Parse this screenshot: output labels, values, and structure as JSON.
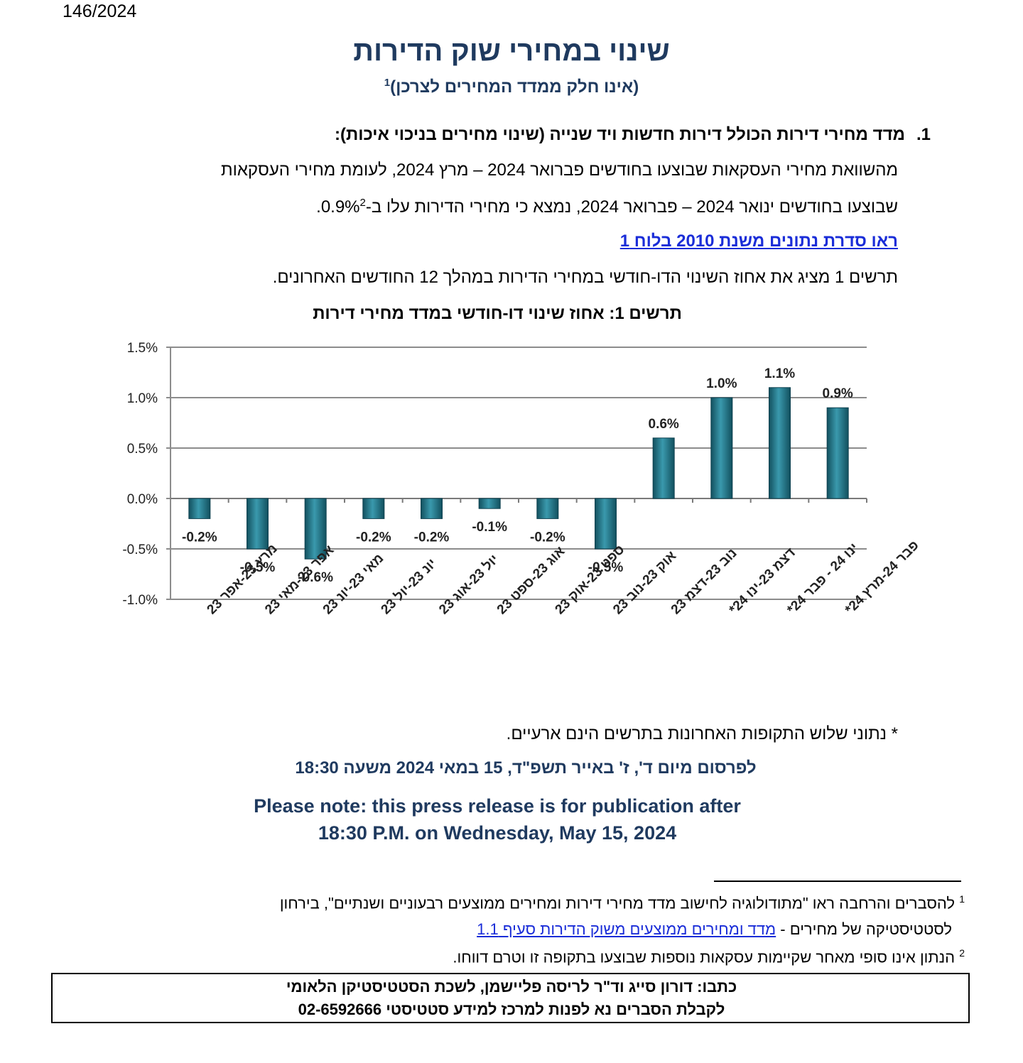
{
  "doc_number": "146/2024",
  "title": "שינוי במחירי שוק הדירות",
  "subtitle": "(אינו חלק ממדד המחירים לצרכן)",
  "subtitle_footnote": "1",
  "section1": {
    "number": "1.",
    "heading": "מדד מחירי דירות הכולל דירות חדשות ויד שנייה (שינוי מחירים בניכוי איכות):",
    "para_line1": "מהשוואת מחירי העסקאות שבוצעו בחודשים פברואר 2024 – מרץ 2024, לעומת מחירי העסקאות",
    "para_line2": "שבוצעו בחודשים ינואר 2024 – פברואר 2024, נמצא כי מחירי הדירות עלו ב-0.9%",
    "para_line2_footnote": "2",
    "para_line2_end": ".",
    "series_link": "ראו סדרת נתונים משנת 2010 בלוח 1",
    "chart_intro": "תרשים 1 מציג את אחוז השינוי הדו-חודשי במחירי הדירות במהלך 12 החודשים האחרונים."
  },
  "chart_data": {
    "type": "bar",
    "title": "תרשים 1: אחוז שינוי דו-חודשי במדד מחירי דירות",
    "xlabel": "",
    "ylabel": "",
    "categories": [
      "מרץ 23-אפר 23",
      "אפר 23-מאי 23",
      "מאי 23-יונ 23",
      "יונ 23-יול 23",
      "יול 23-אוג 23",
      "אוג 23-ספט 23",
      "ספט 23-אוק 23",
      "אוק 23-נוב 23",
      "נוב 23-דצמ 23",
      "דצמ 23-ינו 24*",
      "ינו 24 - פבר 24*",
      "פבר 24-מרץ 24*"
    ],
    "values": [
      -0.2,
      -0.5,
      -0.6,
      -0.2,
      -0.2,
      -0.1,
      -0.2,
      -0.5,
      0.6,
      1.0,
      1.1,
      0.9
    ],
    "value_labels": [
      "-0.2%",
      "-0.5%",
      "-0.6%",
      "-0.2%",
      "-0.2%",
      "-0.1%",
      "-0.2%",
      "-0.5%",
      "0.6%",
      "1.0%",
      "1.1%",
      "0.9%"
    ],
    "y_ticks": [
      "1.5%",
      "1.0%",
      "0.5%",
      "0.0%",
      "-0.5%",
      "-1.0%"
    ],
    "ylim": [
      -1.0,
      1.5
    ],
    "grid": true,
    "bar_color": "#2a7f92"
  },
  "chart_note": "* נתוני שלוש התקופות האחרונות בתרשים הינם ארעיים.",
  "release_hebrew": "לפרסום מיום ד', ז' באייר תשפ\"ד, 15 במאי 2024 משעה 18:30",
  "release_english_line1": "Please note: this press release is for publication after",
  "release_english_line2": "18:30 P.M. on Wednesday, May 15, 2024",
  "footnotes": {
    "fn1_marker": "1",
    "fn1_text": "להסברים והרחבה ראו \"מתודולוגיה לחישוב מדד מחירי דירות ומחירים ממוצעים רבעוניים ושנתיים\", בירחון",
    "fn1_line2": "לסטטיסטיקה של מחירים - ",
    "fn1_link": "מדד ומחירים ממוצעים משוק הדירות סעיף 1.1",
    "fn2_marker": "2",
    "fn2_text": "הנתון אינו סופי מאחר שקיימות עסקאות נוספות שבוצעו בתקופה זו וטרם דווחו."
  },
  "contact": {
    "line1": "כתבו: דורון סייג וד\"ר לריסה פליישמן, לשכת הסטטיסטיקן הלאומי",
    "line2": "לקבלת הסברים נא לפנות למרכז למידע סטטיסטי 02-6592666"
  }
}
